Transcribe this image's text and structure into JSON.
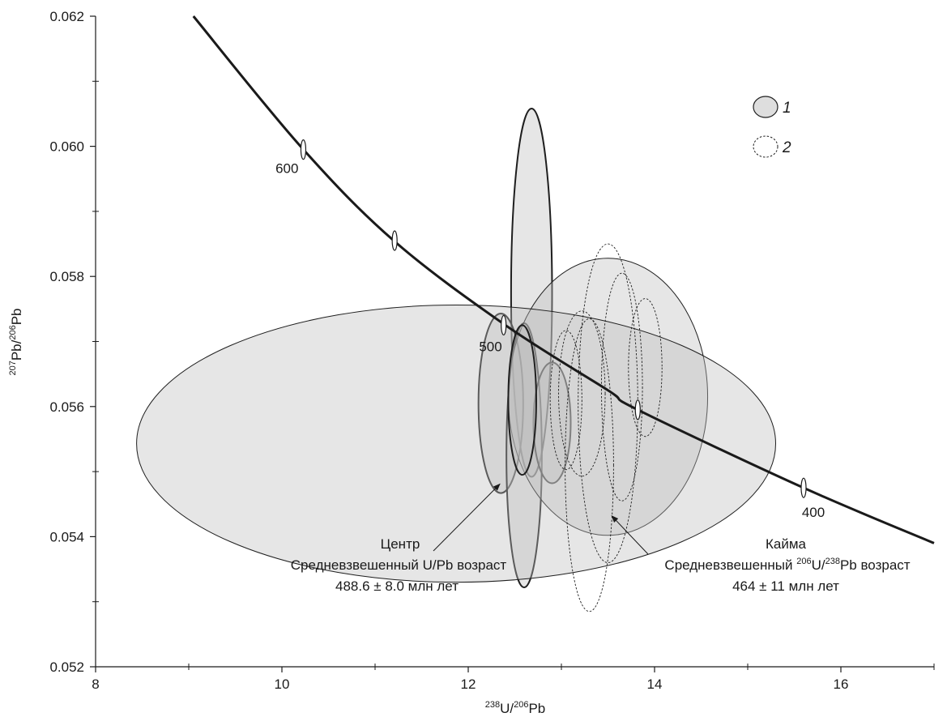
{
  "chart_data": {
    "type": "scatter",
    "title": "",
    "xlabel": {
      "prefix_sup": "238",
      "mid": "U/",
      "sup2": "206",
      "suffix": "Pb"
    },
    "ylabel": {
      "prefix_sup": "207",
      "mid": "Pb/",
      "sup2": "206",
      "suffix": "Pb"
    },
    "xlim": [
      8,
      17
    ],
    "ylim": [
      0.052,
      0.062
    ],
    "x_ticks": [
      8,
      10,
      12,
      14,
      16
    ],
    "x_tick_labels": [
      "8",
      "10",
      "12",
      "14",
      "16"
    ],
    "y_ticks": [
      0.052,
      0.054,
      0.056,
      0.058,
      0.06,
      0.062
    ],
    "y_tick_labels": [
      "0.052",
      "0.054",
      "0.056",
      "0.058",
      "0.060",
      "0.062"
    ],
    "concordia": {
      "points": [
        [
          9.05,
          0.062
        ],
        [
          10.2,
          0.06
        ],
        [
          11.2,
          0.05855
        ],
        [
          12.4,
          0.05725
        ],
        [
          13.5,
          0.05625
        ],
        [
          13.82,
          0.05595
        ],
        [
          15.6,
          0.05475
        ],
        [
          17.0,
          0.0539
        ]
      ],
      "age_markers": [
        {
          "x": 10.23,
          "y": 0.05995,
          "label": "600"
        },
        {
          "x": 11.21,
          "y": 0.05855,
          "label": ""
        },
        {
          "x": 12.38,
          "y": 0.05725,
          "label": "500"
        },
        {
          "x": 13.82,
          "y": 0.05595,
          "label": ""
        },
        {
          "x": 15.6,
          "y": 0.05475,
          "label": "400"
        }
      ]
    },
    "series": [
      {
        "name": "1",
        "style": "solid",
        "ellipses": [
          {
            "cx": 12.68,
            "cy": 0.05775,
            "rx": 0.22,
            "ry": 0.00283
          },
          {
            "cx": 12.35,
            "cy": 0.05605,
            "rx": 0.24,
            "ry": 0.00138
          },
          {
            "cx": 12.6,
            "cy": 0.05525,
            "rx": 0.19,
            "ry": 0.00203
          },
          {
            "cx": 12.9,
            "cy": 0.05575,
            "rx": 0.2,
            "ry": 0.00093
          },
          {
            "cx": 13.5,
            "cy": 0.05615,
            "rx": 1.07,
            "ry": 0.00213
          },
          {
            "cx": 11.87,
            "cy": 0.05543,
            "rx": 3.43,
            "ry": 0.00213
          },
          {
            "cx": 12.58,
            "cy": 0.0561,
            "rx": 0.15,
            "ry": 0.00115
          }
        ]
      },
      {
        "name": "2",
        "style": "dashed",
        "ellipses": [
          {
            "cx": 13.5,
            "cy": 0.05605,
            "rx": 0.32,
            "ry": 0.00245
          },
          {
            "cx": 13.3,
            "cy": 0.0551,
            "rx": 0.26,
            "ry": 0.00225
          },
          {
            "cx": 13.65,
            "cy": 0.0563,
            "rx": 0.22,
            "ry": 0.00175
          },
          {
            "cx": 13.22,
            "cy": 0.0562,
            "rx": 0.25,
            "ry": 0.00127
          },
          {
            "cx": 13.9,
            "cy": 0.0566,
            "rx": 0.18,
            "ry": 0.00106
          },
          {
            "cx": 13.05,
            "cy": 0.0561,
            "rx": 0.17,
            "ry": 0.00107
          }
        ]
      }
    ],
    "legend": {
      "position": "top-right",
      "items": [
        {
          "label": "1",
          "style": "solid"
        },
        {
          "label": "2",
          "style": "dashed"
        }
      ]
    },
    "annotations": [
      {
        "lines": [
          {
            "text": "Центр"
          },
          {
            "text": "Средневзвешенный U/Pb возраст"
          },
          {
            "text": "488.6 ± 8.0 млн лет"
          }
        ],
        "arrow_to": {
          "x": 12.34,
          "y": 0.05481
        }
      },
      {
        "lines": [
          {
            "text": "Кайма"
          },
          {
            "pre": "Средневзвешенный ",
            "sup1": "206",
            "mid": "U/",
            "sup2": "238",
            "post": "Pb возраст"
          },
          {
            "text": "464 ± 11 млн лет"
          }
        ],
        "arrow_to": {
          "x": 13.54,
          "y": 0.05432
        }
      }
    ],
    "colors": {
      "fill_solid": "#bebebe",
      "stroke": "#1f1f1f",
      "curve": "#1a1a1a",
      "background": "#ffffff"
    },
    "grid": false
  }
}
